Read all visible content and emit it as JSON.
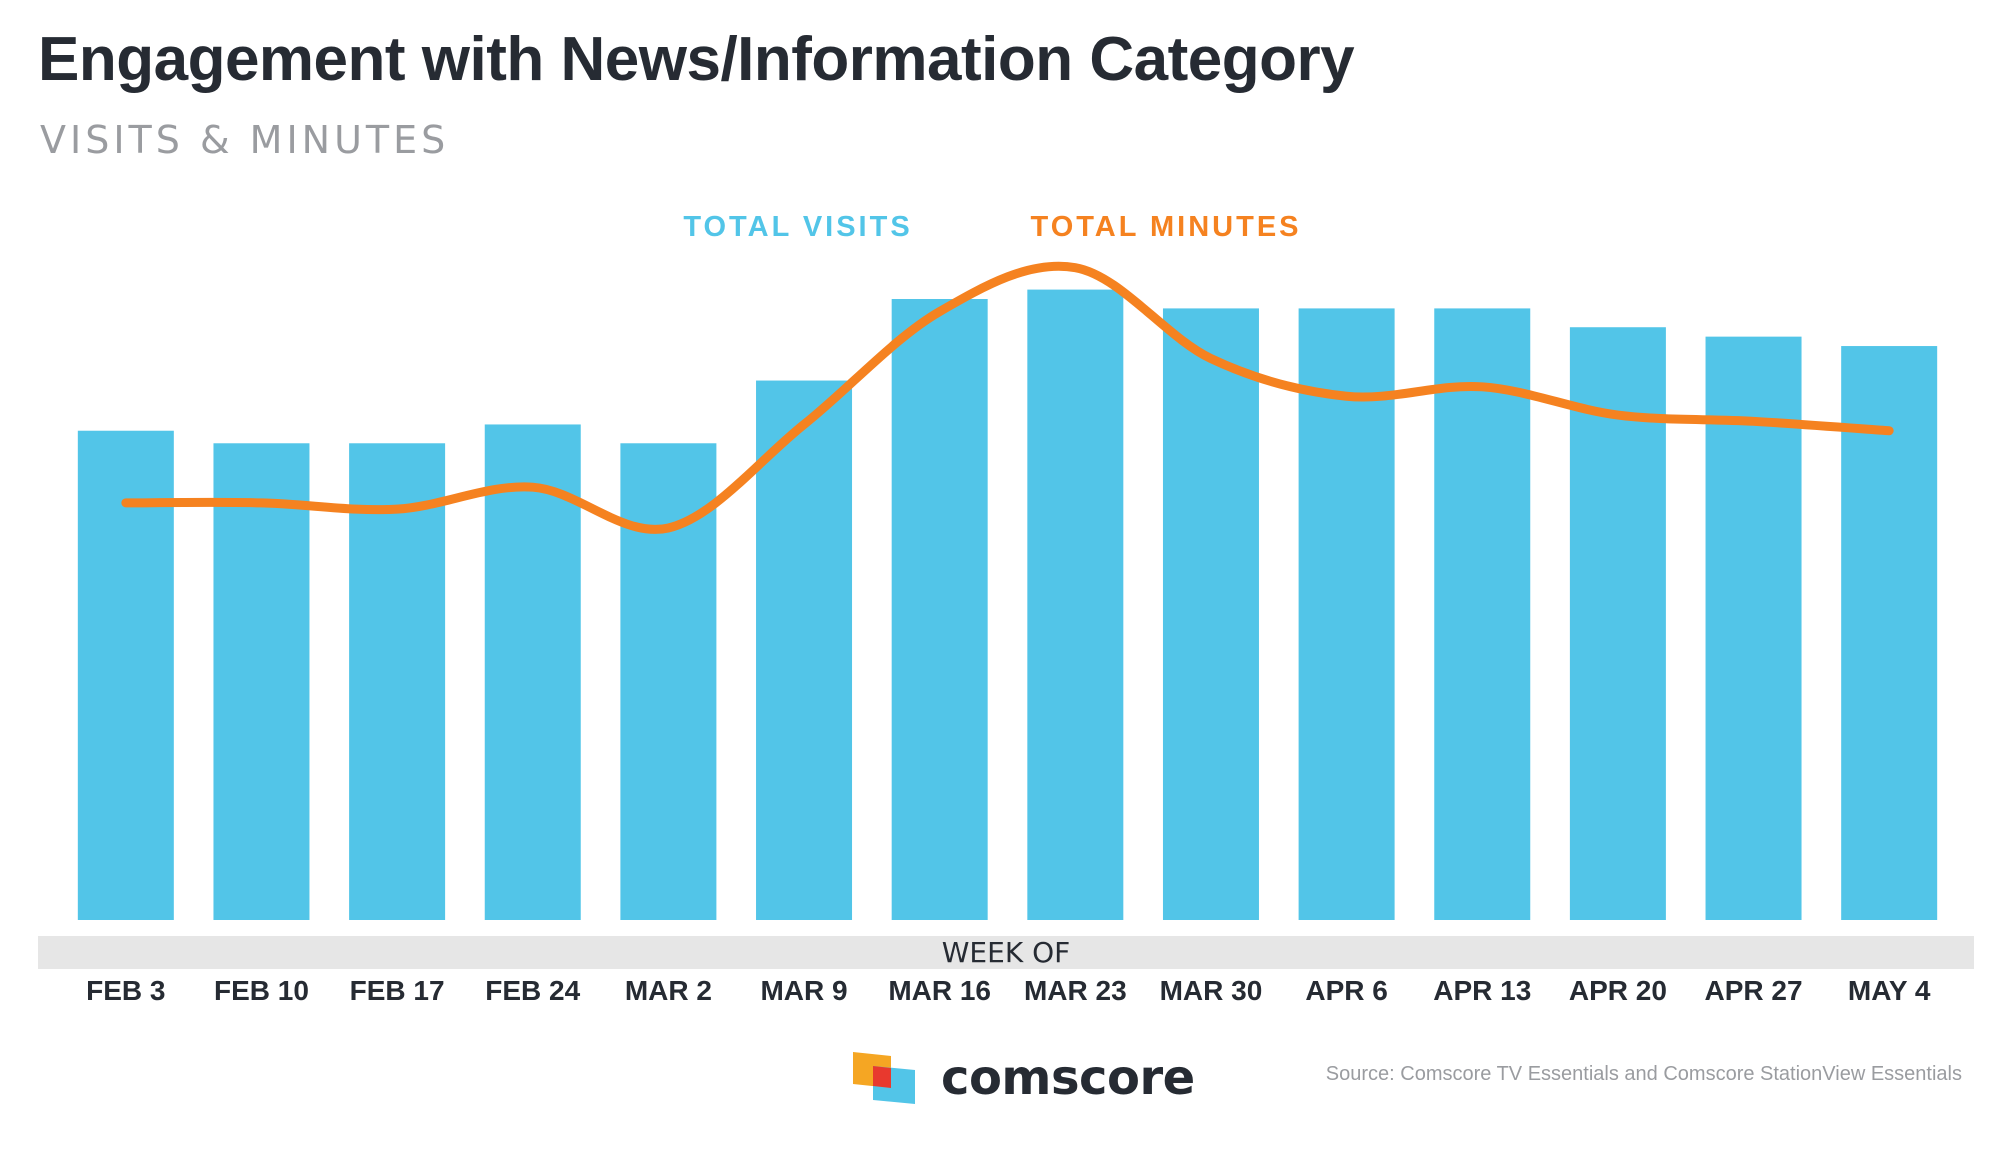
{
  "title": "Engagement with News/Information Category",
  "subtitle": "VISITS & MINUTES",
  "colors": {
    "visits_bar": "#52c5e8",
    "minutes_line": "#f58220",
    "axis_band": "#e6e6e6",
    "text_dark": "#262b33",
    "text_gray": "#9a9ca0"
  },
  "chart_data": {
    "type": "bar",
    "categories": [
      "FEB 3",
      "FEB 10",
      "FEB 17",
      "FEB 24",
      "MAR 2",
      "MAR 9",
      "MAR 16",
      "MAR 23",
      "MAR 30",
      "APR 6",
      "APR 13",
      "APR 20",
      "APR 27",
      "MAY 4"
    ],
    "xlabel": "WEEK OF",
    "series": [
      {
        "name": "TOTAL VISITS",
        "kind": "bar",
        "values": [
          78,
          76,
          76,
          79,
          76,
          86,
          99,
          100.5,
          97.5,
          97.5,
          97.5,
          94.5,
          93,
          91.5
        ]
      },
      {
        "name": "TOTAL MINUTES",
        "kind": "line",
        "values": [
          66.5,
          66.5,
          65.5,
          69,
          62.5,
          79,
          97,
          104,
          89.5,
          83.5,
          85,
          80.5,
          79.5,
          78
        ]
      }
    ],
    "ylim": [
      0,
      110
    ],
    "yaxis_labels_shown": false,
    "grid": false,
    "legend": "top-center"
  },
  "brand": {
    "name": "comscore"
  },
  "source": "Source: Comscore TV Essentials and Comscore StationView Essentials"
}
